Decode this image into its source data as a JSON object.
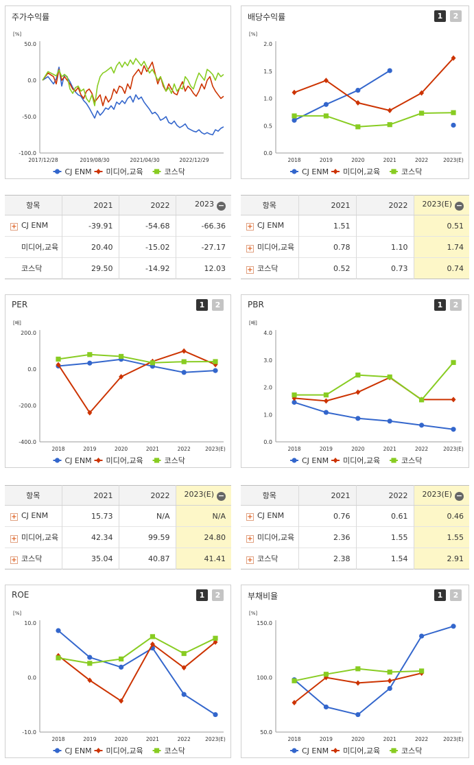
{
  "colors": {
    "cj": "#3366cc",
    "media": "#cc3300",
    "kosdaq": "#88cc22"
  },
  "series_names": [
    "CJ ENM",
    "미디어,교육",
    "코스닥"
  ],
  "pager": [
    "1",
    "2"
  ],
  "tables": [
    {
      "head": [
        "항목",
        "2021",
        "2022",
        "2023"
      ],
      "rows": [
        [
          "CJ ENM",
          "-39.91",
          "-54.68",
          "-66.36"
        ],
        [
          "미디어,교육",
          "20.40",
          "-15.02",
          "-27.17"
        ],
        [
          "코스닥",
          "29.50",
          "-14.92",
          "12.03"
        ]
      ]
    },
    {
      "head": [
        "항목",
        "2021",
        "2022",
        "2023(E)"
      ],
      "rows": [
        [
          "CJ ENM",
          "1.51",
          "",
          "0.51"
        ],
        [
          "미디어,교육",
          "0.78",
          "1.10",
          "1.74"
        ],
        [
          "코스닥",
          "0.52",
          "0.73",
          "0.74"
        ]
      ]
    },
    {
      "head": [
        "항목",
        "2021",
        "2022",
        "2023(E)"
      ],
      "rows": [
        [
          "CJ ENM",
          "15.73",
          "N/A",
          "N/A"
        ],
        [
          "미디어,교육",
          "42.34",
          "99.59",
          "24.80"
        ],
        [
          "코스닥",
          "35.04",
          "40.87",
          "41.41"
        ]
      ]
    },
    {
      "head": [
        "항목",
        "2021",
        "2022",
        "2023(E)"
      ],
      "rows": [
        [
          "CJ ENM",
          "0.76",
          "0.61",
          "0.46"
        ],
        [
          "미디어,교육",
          "2.36",
          "1.55",
          "1.55"
        ],
        [
          "코스닥",
          "2.38",
          "1.54",
          "2.91"
        ]
      ]
    }
  ],
  "chart_data": [
    {
      "title": "주가수익률",
      "type": "line",
      "unit": "[%]",
      "ylim": [
        -100,
        50
      ],
      "yticks": [
        "50.0",
        "0.0",
        "-50.0",
        "-100.0"
      ],
      "xticks": [
        "2017/12/28",
        "2019/08/30",
        "2021/04/30",
        "2022/12/29"
      ],
      "x": [
        0,
        2,
        4,
        5,
        6,
        7,
        8,
        9,
        10,
        11,
        12,
        13,
        14,
        15,
        16,
        17,
        18,
        19,
        20,
        21,
        22,
        23,
        24,
        25,
        26,
        27,
        28,
        29,
        30,
        31,
        32,
        33,
        34,
        35,
        36,
        37,
        38,
        39,
        40,
        41,
        42,
        43,
        44,
        45,
        46,
        47,
        48,
        49,
        50,
        51,
        52,
        53,
        54,
        55,
        56,
        57,
        58,
        59,
        60,
        61,
        62,
        63,
        64,
        65,
        66
      ],
      "series": [
        {
          "name": "CJ ENM",
          "values": [
            0,
            5,
            -5,
            2,
            18,
            -8,
            8,
            4,
            -2,
            -10,
            -16,
            -20,
            -22,
            -28,
            -32,
            -38,
            -45,
            -52,
            -42,
            -48,
            -44,
            -38,
            -40,
            -35,
            -40,
            -30,
            -33,
            -28,
            -32,
            -25,
            -22,
            -30,
            -20,
            -26,
            -23,
            -30,
            -35,
            -40,
            -46,
            -44,
            -48,
            -55,
            -53,
            -50,
            -58,
            -60,
            -56,
            -62,
            -65,
            -63,
            -60,
            -66,
            -68,
            -70,
            -71,
            -68,
            -72,
            -74,
            -72,
            -74,
            -75,
            -68,
            -70,
            -66,
            -64
          ]
        },
        {
          "name": "미디어,교육",
          "values": [
            0,
            10,
            5,
            -5,
            15,
            0,
            5,
            0,
            -5,
            -12,
            -15,
            -10,
            -20,
            -25,
            -15,
            -12,
            -18,
            -30,
            -25,
            -20,
            -35,
            -22,
            -30,
            -25,
            -12,
            -18,
            -8,
            -10,
            -18,
            -5,
            -12,
            5,
            10,
            15,
            8,
            20,
            12,
            18,
            25,
            10,
            -5,
            5,
            -8,
            -15,
            -5,
            -12,
            -18,
            -20,
            -10,
            -2,
            -15,
            -8,
            -12,
            -18,
            -22,
            -15,
            -5,
            -12,
            0,
            5,
            -8,
            -15,
            -20,
            -25,
            -22
          ]
        },
        {
          "name": "코스닥",
          "values": [
            0,
            12,
            8,
            6,
            14,
            5,
            8,
            5,
            -12,
            -18,
            -10,
            -8,
            -15,
            -12,
            -25,
            -30,
            -20,
            -35,
            -8,
            5,
            10,
            12,
            15,
            18,
            10,
            20,
            25,
            18,
            25,
            20,
            28,
            22,
            30,
            25,
            20,
            26,
            18,
            10,
            15,
            8,
            0,
            5,
            -5,
            -15,
            -10,
            -18,
            -5,
            -15,
            -10,
            -12,
            5,
            0,
            -8,
            -12,
            0,
            10,
            5,
            0,
            15,
            12,
            8,
            0,
            10,
            5,
            8
          ]
        }
      ]
    },
    {
      "title": "배당수익률",
      "type": "line",
      "unit": "[%]",
      "ylim": [
        0,
        2
      ],
      "yticks": [
        "2.0",
        "1.5",
        "1.0",
        "0.5",
        "0.0"
      ],
      "categories": [
        "2018",
        "2019",
        "2020",
        "2021",
        "2022",
        "2023(E)"
      ],
      "series": [
        {
          "name": "CJ ENM",
          "values": [
            0.6,
            0.89,
            1.15,
            1.51,
            null,
            0.51
          ]
        },
        {
          "name": "미디어,교육",
          "values": [
            1.11,
            1.33,
            0.92,
            0.78,
            1.1,
            1.74
          ]
        },
        {
          "name": "코스닥",
          "values": [
            0.68,
            0.68,
            0.48,
            0.52,
            0.73,
            0.74
          ]
        }
      ]
    },
    {
      "title": "PER",
      "type": "line",
      "unit": "[배]",
      "ylim": [
        -400,
        200
      ],
      "yticks": [
        "200.0",
        "0.0",
        "-200.0",
        "-400.0"
      ],
      "categories": [
        "2018",
        "2019",
        "2020",
        "2021",
        "2022",
        "2023(E)"
      ],
      "series": [
        {
          "name": "CJ ENM",
          "values": [
            17,
            33,
            54,
            15.73,
            -18,
            -8
          ]
        },
        {
          "name": "미디어,교육",
          "values": [
            24,
            -240,
            -42,
            42.34,
            99.59,
            24.8
          ]
        },
        {
          "name": "코스닥",
          "values": [
            55,
            80,
            70,
            35.04,
            40.87,
            41.41
          ]
        }
      ]
    },
    {
      "title": "PBR",
      "type": "line",
      "unit": "[배]",
      "ylim": [
        0,
        4
      ],
      "yticks": [
        "4.0",
        "3.0",
        "2.0",
        "1.0",
        "0.0"
      ],
      "categories": [
        "2018",
        "2019",
        "2020",
        "2021",
        "2022",
        "2023(E)"
      ],
      "series": [
        {
          "name": "CJ ENM",
          "values": [
            1.45,
            1.08,
            0.86,
            0.76,
            0.61,
            0.46
          ]
        },
        {
          "name": "미디어,교육",
          "values": [
            1.6,
            1.5,
            1.82,
            2.36,
            1.55,
            1.55
          ]
        },
        {
          "name": "코스닥",
          "values": [
            1.72,
            1.72,
            2.45,
            2.38,
            1.54,
            2.91
          ]
        }
      ]
    },
    {
      "title": "ROE",
      "type": "line",
      "unit": "[%]",
      "ylim": [
        -10,
        10
      ],
      "yticks": [
        "10.0",
        "0.0",
        "-10.0"
      ],
      "categories": [
        "2018",
        "2019",
        "2020",
        "2021",
        "2022",
        "2023(E)"
      ],
      "series": [
        {
          "name": "CJ ENM",
          "values": [
            8.6,
            3.7,
            1.9,
            5.4,
            -3.1,
            -6.8
          ]
        },
        {
          "name": "미디어,교육",
          "values": [
            4.0,
            -0.5,
            -4.3,
            6.1,
            1.8,
            6.5
          ]
        },
        {
          "name": "코스닥",
          "values": [
            3.6,
            2.6,
            3.4,
            7.5,
            4.4,
            7.2
          ]
        }
      ]
    },
    {
      "title": "부채비율",
      "type": "line",
      "unit": "[%]",
      "ylim": [
        50,
        150
      ],
      "yticks": [
        "150.0",
        "100.0",
        "50.0"
      ],
      "categories": [
        "2018",
        "2019",
        "2020",
        "2021",
        "2022",
        "2023(E)"
      ],
      "series": [
        {
          "name": "CJ ENM",
          "values": [
            98,
            73,
            66,
            90,
            138,
            147
          ]
        },
        {
          "name": "미디어,교육",
          "values": [
            77,
            100,
            95,
            97,
            104,
            null
          ]
        },
        {
          "name": "코스닥",
          "values": [
            97,
            103,
            108,
            105,
            106,
            null
          ]
        }
      ]
    }
  ]
}
